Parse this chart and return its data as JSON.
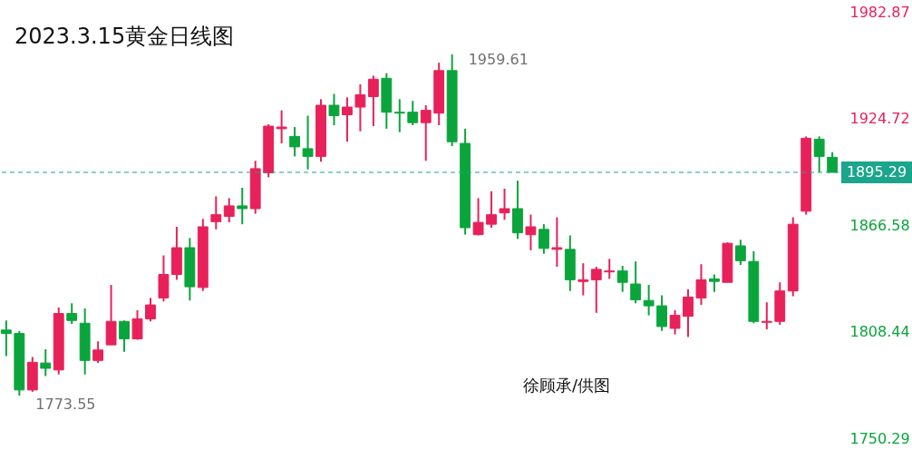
{
  "chart_data": {
    "type": "candlestick",
    "title": "2023.3.15黄金日线图",
    "categories": [
      null,
      null,
      null,
      null,
      null,
      null,
      null,
      null,
      null,
      null,
      null,
      null,
      null,
      null,
      null,
      null,
      null,
      null,
      null,
      null,
      null,
      null,
      null,
      null,
      null,
      null,
      null,
      null,
      null,
      null,
      null,
      null,
      null,
      null,
      null,
      null,
      null,
      null,
      null,
      null,
      null,
      null,
      null,
      null,
      null,
      null,
      null,
      null,
      null,
      null,
      null,
      null,
      null,
      null,
      null,
      null,
      null,
      null,
      null,
      null,
      null,
      null,
      null,
      null
    ],
    "ohlc": [
      [
        1809.3,
        1814.5,
        1795.1,
        1807.4
      ],
      [
        1807.4,
        1808.8,
        1773.55,
        1776.6
      ],
      [
        1776.6,
        1794.6,
        1775.6,
        1791.7
      ],
      [
        1791.3,
        1798.8,
        1784.2,
        1788.4
      ],
      [
        1787.5,
        1821.6,
        1785.1,
        1818.3
      ],
      [
        1818.3,
        1823.9,
        1812.6,
        1814.5
      ],
      [
        1813.0,
        1821.1,
        1785.1,
        1792.7
      ],
      [
        1792.7,
        1803.1,
        1791.3,
        1798.4
      ],
      [
        1801.2,
        1833.9,
        1801.2,
        1814.0
      ],
      [
        1814.0,
        1814.5,
        1797.4,
        1804.5
      ],
      [
        1804.5,
        1820.1,
        1804.0,
        1815.4
      ],
      [
        1815.4,
        1826.8,
        1814.0,
        1823.0
      ],
      [
        1826.8,
        1850.0,
        1824.9,
        1839.6
      ],
      [
        1839.6,
        1865.6,
        1836.7,
        1854.2
      ],
      [
        1854.2,
        1859.5,
        1825.4,
        1832.9
      ],
      [
        1832.5,
        1869.9,
        1830.6,
        1865.6
      ],
      [
        1868.4,
        1882.2,
        1864.2,
        1872.2
      ],
      [
        1871.3,
        1881.2,
        1868.0,
        1877.0
      ],
      [
        1877.0,
        1886.9,
        1867.0,
        1875.5
      ],
      [
        1875.5,
        1901.6,
        1872.7,
        1897.3
      ],
      [
        1895.0,
        1921.5,
        1892.6,
        1920.5
      ],
      [
        1919.1,
        1929.1,
        1911.1,
        1920.0
      ],
      [
        1914.9,
        1920.0,
        1904.0,
        1909.2
      ],
      [
        1908.2,
        1926.2,
        1896.9,
        1904.0
      ],
      [
        1904.0,
        1935.2,
        1901.1,
        1931.9
      ],
      [
        1931.9,
        1938.1,
        1921.0,
        1926.2
      ],
      [
        1926.7,
        1936.2,
        1912.0,
        1930.9
      ],
      [
        1930.9,
        1943.3,
        1917.7,
        1937.6
      ],
      [
        1936.6,
        1948.0,
        1920.5,
        1946.1
      ],
      [
        1946.6,
        1949.4,
        1919.1,
        1928.1
      ],
      [
        1928.1,
        1935.2,
        1917.2,
        1927.6
      ],
      [
        1928.1,
        1934.3,
        1921.0,
        1922.4
      ],
      [
        1922.4,
        1931.9,
        1901.6,
        1929.1
      ],
      [
        1927.6,
        1955.1,
        1921.0,
        1950.8
      ],
      [
        1950.8,
        1959.61,
        1909.6,
        1912.0
      ],
      [
        1911.1,
        1919.1,
        1861.3,
        1865.1
      ],
      [
        1861.3,
        1881.2,
        1860.9,
        1868.0
      ],
      [
        1867.0,
        1885.0,
        1865.1,
        1872.2
      ],
      [
        1873.2,
        1886.4,
        1869.4,
        1875.5
      ],
      [
        1875.5,
        1890.7,
        1859.0,
        1862.3
      ],
      [
        1861.3,
        1872.2,
        1852.8,
        1865.6
      ],
      [
        1864.2,
        1867.0,
        1850.9,
        1853.8
      ],
      [
        1853.3,
        1870.8,
        1843.8,
        1854.2
      ],
      [
        1853.3,
        1860.9,
        1830.6,
        1836.7
      ],
      [
        1835.8,
        1845.7,
        1828.2,
        1836.7
      ],
      [
        1836.7,
        1843.8,
        1818.7,
        1842.4
      ],
      [
        1841.0,
        1848.1,
        1837.2,
        1841.5
      ],
      [
        1841.5,
        1844.3,
        1830.1,
        1835.3
      ],
      [
        1834.4,
        1846.7,
        1823.9,
        1825.8
      ],
      [
        1825.4,
        1833.9,
        1817.3,
        1822.5
      ],
      [
        1822.5,
        1828.2,
        1808.8,
        1811.2
      ],
      [
        1810.2,
        1820.1,
        1806.9,
        1817.3
      ],
      [
        1816.8,
        1831.5,
        1805.5,
        1827.3
      ],
      [
        1826.8,
        1845.2,
        1823.0,
        1836.7
      ],
      [
        1837.2,
        1839.6,
        1830.1,
        1835.8
      ],
      [
        1835.3,
        1857.1,
        1835.3,
        1856.6
      ],
      [
        1855.2,
        1858.5,
        1844.8,
        1847.1
      ],
      [
        1846.7,
        1852.3,
        1813.0,
        1814.0
      ],
      [
        1813.5,
        1824.4,
        1809.7,
        1814.0
      ],
      [
        1814.0,
        1835.3,
        1812.1,
        1830.6
      ],
      [
        1830.6,
        1870.8,
        1827.7,
        1867.0
      ],
      [
        1874.1,
        1914.9,
        1872.2,
        1913.9
      ],
      [
        1913.4,
        1914.9,
        1895.4,
        1904.0
      ],
      [
        1903.5,
        1906.3,
        1895.29,
        1895.29
      ]
    ],
    "colors": [
      "#0aa53c",
      "#0aa53c",
      "#e8215a",
      "#0aa53c",
      "#e8215a",
      "#0aa53c",
      "#0aa53c",
      "#e8215a",
      "#e8215a",
      "#0aa53c",
      "#e8215a",
      "#e8215a",
      "#e8215a",
      "#e8215a",
      "#0aa53c",
      "#e8215a",
      "#e8215a",
      "#e8215a",
      "#0aa53c",
      "#e8215a",
      "#e8215a",
      "#e8215a",
      "#0aa53c",
      "#0aa53c",
      "#e8215a",
      "#0aa53c",
      "#e8215a",
      "#e8215a",
      "#e8215a",
      "#0aa53c",
      "#0aa53c",
      "#0aa53c",
      "#e8215a",
      "#e8215a",
      "#0aa53c",
      "#0aa53c",
      "#e8215a",
      "#e8215a",
      "#e8215a",
      "#0aa53c",
      "#e8215a",
      "#0aa53c",
      "#e8215a",
      "#0aa53c",
      "#e8215a",
      "#e8215a",
      "#e8215a",
      "#0aa53c",
      "#0aa53c",
      "#0aa53c",
      "#0aa53c",
      "#e8215a",
      "#e8215a",
      "#e8215a",
      "#0aa53c",
      "#e8215a",
      "#0aa53c",
      "#0aa53c",
      "#e8215a",
      "#e8215a",
      "#e8215a",
      "#e8215a",
      "#0aa53c",
      "#0aa53c"
    ],
    "ylim": [
      1750.29,
      1982.87
    ],
    "yticks": [
      1750.29,
      1808.44,
      1866.58,
      1924.72,
      1982.87
    ],
    "tick_labels": "y",
    "grid": false,
    "ref_lines": [
      {
        "axis": "y",
        "value": 1895.29,
        "label": "1895.29",
        "color": "#1aa58c",
        "line_style": "dashed"
      }
    ],
    "annotations": [
      "1959.61",
      "1773.55",
      "徐顾承/供图"
    ]
  }
}
